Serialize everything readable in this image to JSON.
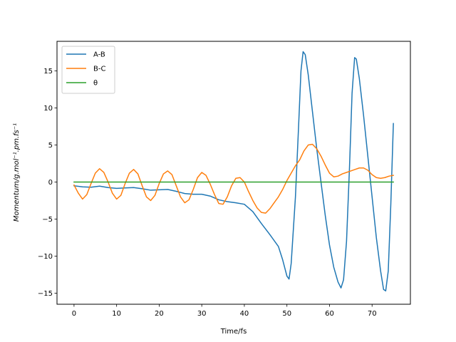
{
  "chart_data": {
    "type": "line",
    "xlabel": "Time/fs",
    "ylabel": "Momentum/g.mol⁻¹.pm.fs⁻¹",
    "xlim": [
      -4,
      79
    ],
    "ylim": [
      -16.5,
      19
    ],
    "xticks": [
      0,
      10,
      20,
      30,
      40,
      50,
      60,
      70
    ],
    "yticks": [
      -15,
      -10,
      -5,
      0,
      5,
      10,
      15
    ],
    "grid": false,
    "legend_position": "top-left",
    "series": [
      {
        "name": "A-B",
        "color": "#1f77b4",
        "points": [
          [
            0,
            -0.5
          ],
          [
            2,
            -0.65
          ],
          [
            4,
            -0.7
          ],
          [
            6,
            -0.55
          ],
          [
            8,
            -0.75
          ],
          [
            10,
            -0.85
          ],
          [
            12,
            -0.8
          ],
          [
            14,
            -0.75
          ],
          [
            16,
            -0.9
          ],
          [
            18,
            -1.1
          ],
          [
            20,
            -1.05
          ],
          [
            22,
            -1.0
          ],
          [
            24,
            -1.25
          ],
          [
            26,
            -1.55
          ],
          [
            28,
            -1.65
          ],
          [
            30,
            -1.65
          ],
          [
            32,
            -1.9
          ],
          [
            34,
            -2.4
          ],
          [
            36,
            -2.65
          ],
          [
            38,
            -2.8
          ],
          [
            40,
            -3.0
          ],
          [
            42,
            -4.0
          ],
          [
            44,
            -5.6
          ],
          [
            46,
            -7.1
          ],
          [
            48,
            -8.7
          ],
          [
            49,
            -10.5
          ],
          [
            50,
            -12.7
          ],
          [
            50.5,
            -13.1
          ],
          [
            51,
            -11.0
          ],
          [
            52,
            -2.0
          ],
          [
            52.7,
            7.0
          ],
          [
            53.3,
            15.0
          ],
          [
            53.8,
            17.6
          ],
          [
            54.3,
            17.2
          ],
          [
            55,
            14.5
          ],
          [
            56,
            9.5
          ],
          [
            57,
            4.5
          ],
          [
            58,
            0
          ],
          [
            59,
            -4.5
          ],
          [
            60,
            -8.5
          ],
          [
            61,
            -11.5
          ],
          [
            62,
            -13.5
          ],
          [
            62.7,
            -14.3
          ],
          [
            63.3,
            -13.2
          ],
          [
            64,
            -8.0
          ],
          [
            64.7,
            2.0
          ],
          [
            65.3,
            12.0
          ],
          [
            65.9,
            16.8
          ],
          [
            66.3,
            16.6
          ],
          [
            67,
            14.0
          ],
          [
            68,
            9.0
          ],
          [
            69,
            3.5
          ],
          [
            70,
            -2.0
          ],
          [
            71,
            -7.5
          ],
          [
            72,
            -12.0
          ],
          [
            72.7,
            -14.5
          ],
          [
            73.2,
            -14.7
          ],
          [
            73.8,
            -12.0
          ],
          [
            74.4,
            -3.0
          ],
          [
            75,
            7.9
          ]
        ]
      },
      {
        "name": "B-C",
        "color": "#ff7f0e",
        "points": [
          [
            0,
            -0.4
          ],
          [
            1,
            -1.5
          ],
          [
            2,
            -2.3
          ],
          [
            3,
            -1.7
          ],
          [
            4,
            -0.2
          ],
          [
            5,
            1.2
          ],
          [
            6,
            1.8
          ],
          [
            7,
            1.3
          ],
          [
            8,
            0
          ],
          [
            9,
            -1.5
          ],
          [
            10,
            -2.3
          ],
          [
            11,
            -1.8
          ],
          [
            12,
            -0.2
          ],
          [
            13,
            1.2
          ],
          [
            14,
            1.7
          ],
          [
            15,
            1.1
          ],
          [
            16,
            -0.5
          ],
          [
            17,
            -2.0
          ],
          [
            18,
            -2.5
          ],
          [
            19,
            -1.8
          ],
          [
            20,
            -0.2
          ],
          [
            21,
            1.1
          ],
          [
            22,
            1.5
          ],
          [
            23,
            1.0
          ],
          [
            24,
            -0.5
          ],
          [
            25,
            -2.0
          ],
          [
            26,
            -2.8
          ],
          [
            27,
            -2.4
          ],
          [
            28,
            -1.0
          ],
          [
            29,
            0.6
          ],
          [
            30,
            1.3
          ],
          [
            31,
            0.9
          ],
          [
            32,
            -0.3
          ],
          [
            33,
            -1.7
          ],
          [
            34,
            -2.9
          ],
          [
            35,
            -3.0
          ],
          [
            36,
            -2.0
          ],
          [
            37,
            -0.5
          ],
          [
            38,
            0.5
          ],
          [
            39,
            0.6
          ],
          [
            40,
            0
          ],
          [
            41,
            -1.3
          ],
          [
            42,
            -2.5
          ],
          [
            43,
            -3.5
          ],
          [
            44,
            -4.1
          ],
          [
            45,
            -4.2
          ],
          [
            46,
            -3.6
          ],
          [
            47,
            -2.8
          ],
          [
            48,
            -2.0
          ],
          [
            49,
            -1.0
          ],
          [
            50,
            0.2
          ],
          [
            51,
            1.2
          ],
          [
            52,
            2.2
          ],
          [
            53,
            3.0
          ],
          [
            54,
            4.2
          ],
          [
            55,
            5.0
          ],
          [
            56,
            5.1
          ],
          [
            57,
            4.5
          ],
          [
            58,
            3.5
          ],
          [
            59,
            2.3
          ],
          [
            60,
            1.2
          ],
          [
            61,
            0.7
          ],
          [
            62,
            0.8
          ],
          [
            63,
            1.1
          ],
          [
            64,
            1.3
          ],
          [
            65,
            1.5
          ],
          [
            66,
            1.7
          ],
          [
            67,
            1.9
          ],
          [
            68,
            1.9
          ],
          [
            69,
            1.6
          ],
          [
            70,
            1.0
          ],
          [
            71,
            0.6
          ],
          [
            72,
            0.5
          ],
          [
            73,
            0.6
          ],
          [
            74,
            0.8
          ],
          [
            75,
            0.9
          ]
        ]
      },
      {
        "name": "θ",
        "color": "#2ca02c",
        "points": [
          [
            0,
            0
          ],
          [
            75,
            0
          ]
        ]
      }
    ]
  }
}
